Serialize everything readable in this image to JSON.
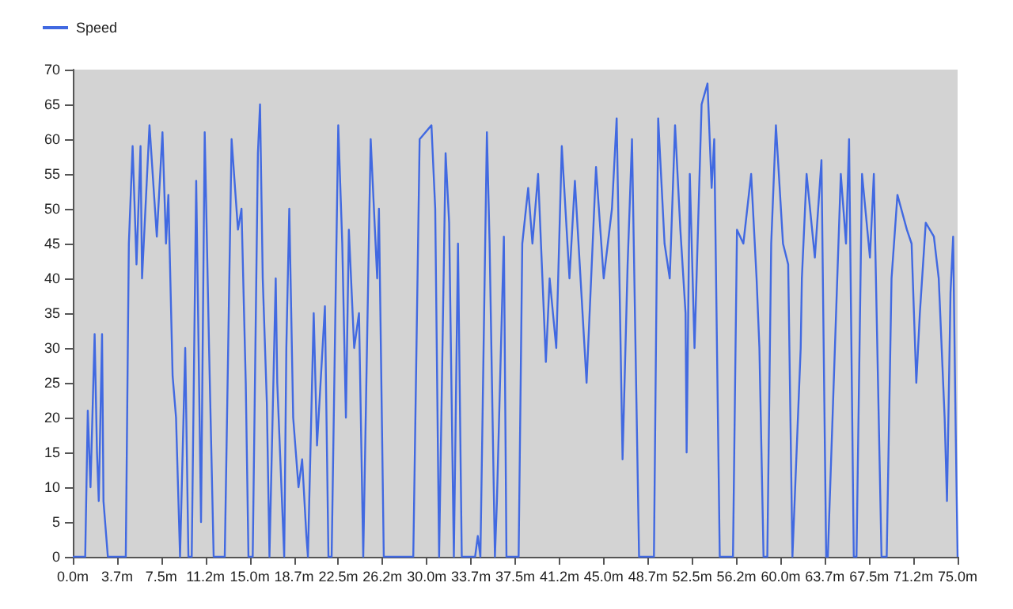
{
  "chart_data": {
    "type": "line",
    "legend": "top left",
    "grid": false,
    "marker": "none",
    "line_style": "solid",
    "xlim": [
      0,
      75
    ],
    "ylim": [
      0,
      70
    ],
    "xticks": [
      {
        "value": 0,
        "label": "0.0m"
      },
      {
        "value": 3.75,
        "label": "3.7m"
      },
      {
        "value": 7.5,
        "label": "7.5m"
      },
      {
        "value": 11.25,
        "label": "11.2m"
      },
      {
        "value": 15,
        "label": "15.0m"
      },
      {
        "value": 18.75,
        "label": "18.7m"
      },
      {
        "value": 22.5,
        "label": "22.5m"
      },
      {
        "value": 26.25,
        "label": "26.2m"
      },
      {
        "value": 30,
        "label": "30.0m"
      },
      {
        "value": 33.75,
        "label": "33.7m"
      },
      {
        "value": 37.5,
        "label": "37.5m"
      },
      {
        "value": 41.25,
        "label": "41.2m"
      },
      {
        "value": 45,
        "label": "45.0m"
      },
      {
        "value": 48.75,
        "label": "48.7m"
      },
      {
        "value": 52.5,
        "label": "52.5m"
      },
      {
        "value": 56.25,
        "label": "56.2m"
      },
      {
        "value": 60,
        "label": "60.0m"
      },
      {
        "value": 63.75,
        "label": "63.7m"
      },
      {
        "value": 67.5,
        "label": "67.5m"
      },
      {
        "value": 71.25,
        "label": "71.2m"
      },
      {
        "value": 75,
        "label": "75.0m"
      }
    ],
    "yticks": [
      0,
      5,
      10,
      15,
      20,
      25,
      30,
      35,
      40,
      45,
      50,
      55,
      60,
      65,
      70
    ],
    "series": [
      {
        "name": "Speed",
        "color": "#4169e1",
        "x": [
          0,
          1.05,
          1.27,
          1.5,
          1.85,
          2.05,
          2.2,
          2.48,
          2.6,
          2.97,
          4.49,
          4.75,
          5.07,
          5.4,
          5.74,
          5.87,
          6.5,
          7.12,
          7.6,
          7.9,
          8.1,
          8.46,
          8.75,
          9.09,
          9.53,
          9.8,
          10.08,
          10.46,
          10.87,
          11.18,
          11.55,
          11.94,
          12.88,
          13.46,
          14.0,
          14.3,
          14.66,
          14.89,
          15.25,
          15.69,
          15.87,
          16.1,
          16.45,
          16.67,
          17.2,
          17.33,
          17.92,
          18.1,
          18.35,
          18.68,
          19.13,
          19.44,
          19.8,
          19.93,
          20.42,
          20.7,
          21.37,
          21.67,
          21.94,
          22.5,
          22.84,
          23.15,
          23.4,
          23.85,
          24.26,
          24.62,
          25.25,
          25.8,
          25.95,
          26.36,
          28.86,
          29.4,
          30.4,
          30.72,
          31.05,
          31.6,
          31.9,
          32.3,
          32.65,
          32.97,
          34.1,
          34.33,
          34.55,
          35.1,
          35.33,
          35.78,
          35.95,
          36.54,
          36.76,
          37.79,
          38.1,
          38.6,
          38.96,
          39.44,
          40.1,
          40.42,
          40.98,
          41.45,
          42.1,
          42.56,
          43.55,
          44.35,
          45.0,
          45.7,
          46.1,
          46.6,
          47.03,
          47.4,
          48.0,
          49.26,
          49.62,
          50.16,
          50.6,
          51.05,
          51.5,
          51.94,
          52.03,
          52.3,
          52.7,
          53.3,
          53.8,
          54.15,
          54.37,
          54.84,
          55.96,
          56.3,
          56.84,
          57.5,
          57.96,
          58.2,
          58.55,
          58.87,
          59.2,
          59.6,
          60.2,
          60.64,
          61.0,
          61.7,
          61.8,
          62.2,
          62.9,
          63.46,
          63.86,
          64.0,
          65.1,
          65.54,
          65.8,
          66.2,
          66.43,
          66.9,
          67.57,
          67.9,
          68.55,
          68.99,
          69.4,
          69.9,
          70.7,
          71.1,
          71.5,
          71.8,
          72.3,
          72.99,
          73.4,
          73.9,
          74.1,
          74.4,
          74.62,
          74.84,
          75.0
        ],
        "values": [
          0,
          0,
          21,
          10,
          32,
          15,
          8,
          32,
          8,
          0,
          0,
          45,
          59,
          42,
          59,
          40,
          62,
          46,
          61,
          45,
          52,
          26,
          20,
          0,
          30,
          0,
          0,
          54,
          5,
          61,
          30,
          0,
          0,
          60,
          47,
          50,
          25,
          0,
          0,
          58,
          65,
          40,
          22,
          0,
          40,
          25,
          0,
          30,
          50,
          20,
          10,
          14,
          3,
          0,
          35,
          16,
          36,
          0,
          0,
          62,
          45,
          20,
          47,
          30,
          35,
          0,
          60,
          40,
          50,
          0,
          0,
          60,
          62,
          50,
          0,
          58,
          48,
          0,
          45,
          0,
          0,
          3,
          0,
          61,
          45,
          0,
          8,
          46,
          0,
          0,
          45,
          53,
          45,
          55,
          28,
          40,
          30,
          59,
          40,
          54,
          25,
          56,
          40,
          50,
          63,
          14,
          42,
          60,
          0,
          0,
          63,
          45,
          40,
          62,
          47,
          35,
          15,
          55,
          30,
          65,
          68,
          53,
          60,
          0,
          0,
          47,
          45,
          55,
          40,
          30,
          0,
          0,
          45,
          62,
          45,
          42,
          0,
          30,
          40,
          55,
          43,
          57,
          0,
          0,
          55,
          45,
          60,
          0,
          0,
          55,
          43,
          55,
          0,
          0,
          40,
          52,
          47,
          45,
          25,
          35,
          48,
          46,
          40,
          20,
          8,
          38,
          46,
          18,
          0
        ]
      }
    ]
  }
}
